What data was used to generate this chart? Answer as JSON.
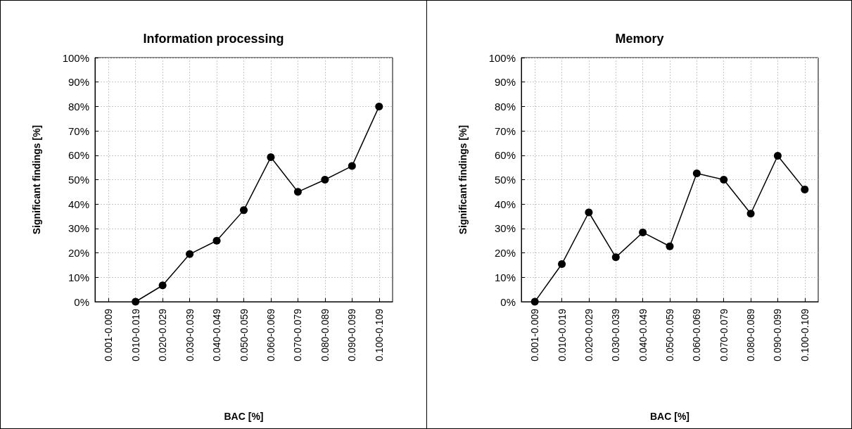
{
  "chart_data": [
    {
      "type": "line",
      "title": "Information processing",
      "xlabel": "BAC [%]",
      "ylabel": "Significant findings [%]",
      "categories": [
        "0.001-0.009",
        "0.010-0.019",
        "0.020-0.029",
        "0.030-0.039",
        "0.040-0.049",
        "0.050-0.059",
        "0.060-0.069",
        "0.070-0.079",
        "0.080-0.089",
        "0.090-0.099",
        "0.100-0.109"
      ],
      "series": [
        {
          "color": "#000000",
          "values": [
            null,
            0,
            6.7,
            19.5,
            25,
            37.5,
            59.2,
            45,
            50,
            55.6,
            80
          ]
        }
      ],
      "ylim": [
        0,
        100
      ],
      "yticks": [
        {
          "value": 0,
          "label": "0%"
        },
        {
          "value": 10,
          "label": "10%"
        },
        {
          "value": 20,
          "label": "20%"
        },
        {
          "value": 30,
          "label": "30%"
        },
        {
          "value": 40,
          "label": "40%"
        },
        {
          "value": 50,
          "label": "50%"
        },
        {
          "value": 60,
          "label": "60%"
        },
        {
          "value": 70,
          "label": "70%"
        },
        {
          "value": 80,
          "label": "80%"
        },
        {
          "value": 90,
          "label": "90%"
        },
        {
          "value": 100,
          "label": "100%"
        }
      ],
      "grid": true,
      "marker": "circle",
      "line_style": "solid"
    },
    {
      "type": "line",
      "title": "Memory",
      "xlabel": "BAC [%]",
      "ylabel": "Significant findings [%]",
      "categories": [
        "0.001-0.009",
        "0.010-0.019",
        "0.020-0.029",
        "0.030-0.039",
        "0.040-0.049",
        "0.050-0.059",
        "0.060-0.069",
        "0.070-0.079",
        "0.080-0.089",
        "0.090-0.099",
        "0.100-0.109"
      ],
      "series": [
        {
          "color": "#000000",
          "values": [
            0,
            15.4,
            36.6,
            18.2,
            28.4,
            22.7,
            52.6,
            50,
            36.1,
            59.8,
            46
          ]
        }
      ],
      "ylim": [
        0,
        100
      ],
      "yticks": [
        {
          "value": 0,
          "label": "0%"
        },
        {
          "value": 10,
          "label": "10%"
        },
        {
          "value": 20,
          "label": "20%"
        },
        {
          "value": 30,
          "label": "30%"
        },
        {
          "value": 40,
          "label": "40%"
        },
        {
          "value": 50,
          "label": "50%"
        },
        {
          "value": 60,
          "label": "60%"
        },
        {
          "value": 70,
          "label": "70%"
        },
        {
          "value": 80,
          "label": "80%"
        },
        {
          "value": 90,
          "label": "90%"
        },
        {
          "value": 100,
          "label": "100%"
        }
      ],
      "grid": true,
      "marker": "circle",
      "line_style": "solid"
    }
  ]
}
